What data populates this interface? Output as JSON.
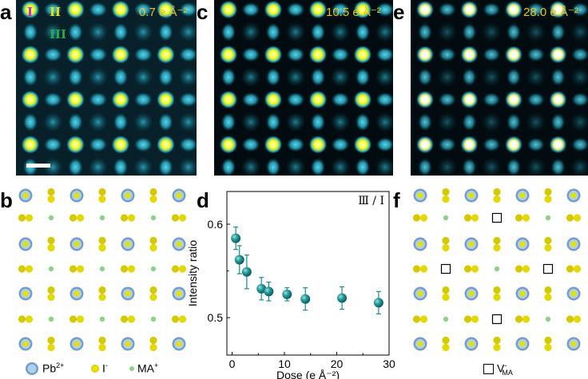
{
  "panels": {
    "a": {
      "letter": "a",
      "dose": "0.7 e Å⁻²",
      "sites": [
        "I",
        "II",
        "III"
      ]
    },
    "c": {
      "letter": "c",
      "dose": "10.5 e Å⁻²"
    },
    "e": {
      "letter": "e",
      "dose": "28.0 e Å⁻²"
    },
    "b": {
      "letter": "b"
    },
    "d": {
      "letter": "d"
    },
    "f": {
      "letter": "f"
    }
  },
  "legend_b": {
    "pb": "Pb",
    "pb_sup": "2+",
    "i": "I",
    "i_sup": "-",
    "ma": "MA",
    "ma_sup": "+"
  },
  "legend_f": {
    "v": "V",
    "v_sup": "-",
    "v_sub": "MA"
  },
  "colors": {
    "pb": "#7a9cc2",
    "iodide": "#e8e000",
    "ma": "#8fd18a",
    "teal": "#1a8c8c",
    "dose_text": "#e6c12a",
    "roman1": "#c030c0",
    "roman2": "#e8e000",
    "roman3": "#2aa84a"
  },
  "chart_data": {
    "type": "scatter",
    "title": "",
    "annotation": "Ⅲ / Ⅰ",
    "xlabel": "Dose (e Å⁻²)",
    "ylabel": "Intensity ratio",
    "xlim": [
      -1,
      30
    ],
    "ylim": [
      0.46,
      0.635
    ],
    "xticks": [
      0,
      10,
      20,
      30
    ],
    "yticks": [
      0.5,
      0.6
    ],
    "ytick_labels": [
      "0.5",
      "0.6"
    ],
    "points": [
      {
        "x": 0.7,
        "y": 0.585,
        "err": 0.012
      },
      {
        "x": 1.4,
        "y": 0.562,
        "err": 0.015
      },
      {
        "x": 2.8,
        "y": 0.549,
        "err": 0.018
      },
      {
        "x": 5.6,
        "y": 0.531,
        "err": 0.012
      },
      {
        "x": 7.0,
        "y": 0.528,
        "err": 0.01
      },
      {
        "x": 10.5,
        "y": 0.525,
        "err": 0.007
      },
      {
        "x": 14.0,
        "y": 0.52,
        "err": 0.012
      },
      {
        "x": 21.0,
        "y": 0.521,
        "err": 0.012
      },
      {
        "x": 28.0,
        "y": 0.516,
        "err": 0.012
      }
    ]
  }
}
